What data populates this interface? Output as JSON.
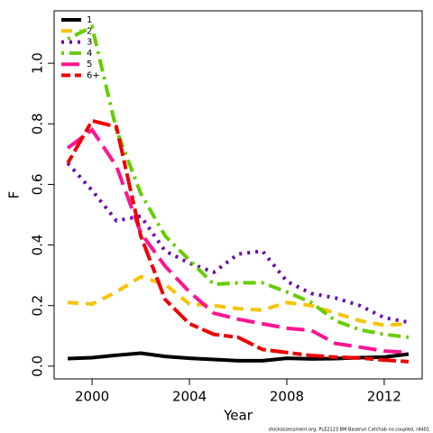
{
  "chart_data": {
    "type": "line",
    "x_label": "Year",
    "y_label": "F",
    "caption": "stockassessment.org, PLE2123 BM Baserun Catchab no coupled, r4401",
    "x": [
      1999,
      2000,
      2001,
      2002,
      2003,
      2004,
      2005,
      2006,
      2007,
      2008,
      2009,
      2010,
      2011,
      2012,
      2013
    ],
    "xlim": [
      1998.44,
      2013.56
    ],
    "xticks": [
      2000,
      2004,
      2008,
      2012
    ],
    "ylim": [
      -0.042,
      1.173
    ],
    "yticks": [
      {
        "value": 0,
        "label": "0.0"
      },
      0.2,
      0.4,
      0.6,
      0.8,
      {
        "value": 1,
        "label": "1.0"
      }
    ],
    "legend": "top-left",
    "series": [
      {
        "name": "1",
        "color": "#000000",
        "dash": "none",
        "values": [
          0.025,
          0.028,
          0.036,
          0.043,
          0.032,
          0.026,
          0.022,
          0.018,
          0.018,
          0.026,
          0.024,
          0.025,
          0.028,
          0.03,
          0.04
        ]
      },
      {
        "name": "2",
        "color": "#f5c400",
        "dash": "12,8",
        "values": [
          0.21,
          0.205,
          0.245,
          0.295,
          0.27,
          0.205,
          0.2,
          0.19,
          0.185,
          0.21,
          0.2,
          0.175,
          0.15,
          0.135,
          0.14
        ]
      },
      {
        "name": "3",
        "color": "#6a0dad",
        "dash": "3,6",
        "values": [
          0.67,
          0.58,
          0.48,
          0.495,
          0.38,
          0.34,
          0.31,
          0.37,
          0.38,
          0.28,
          0.24,
          0.225,
          0.2,
          0.16,
          0.145
        ]
      },
      {
        "name": "4",
        "color": "#66cc00",
        "dash": "3,6,14,6",
        "values": [
          1.08,
          1.12,
          0.78,
          0.57,
          0.43,
          0.35,
          0.27,
          0.275,
          0.275,
          0.245,
          0.21,
          0.15,
          0.12,
          0.105,
          0.095
        ]
      },
      {
        "name": "5",
        "color": "#ff1493",
        "dash": "20,8",
        "values": [
          0.72,
          0.78,
          0.66,
          0.44,
          0.33,
          0.245,
          0.175,
          0.155,
          0.14,
          0.125,
          0.118,
          0.075,
          0.063,
          0.05,
          0.045
        ]
      },
      {
        "name": "6+",
        "color": "#ee0000",
        "dash": "10,5,20,5",
        "values": [
          0.67,
          0.81,
          0.79,
          0.43,
          0.22,
          0.14,
          0.105,
          0.095,
          0.055,
          0.045,
          0.035,
          0.03,
          0.027,
          0.02,
          0.015
        ]
      }
    ]
  }
}
